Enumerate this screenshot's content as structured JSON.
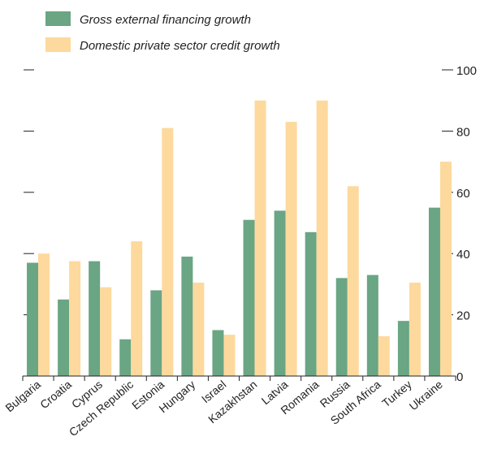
{
  "chart_data": {
    "type": "bar",
    "categories": [
      "Bulgaria",
      "Croatia",
      "Cyprus",
      "Czech Republic",
      "Estonia",
      "Hungary",
      "Israel",
      "Kazakhstan",
      "Latvia",
      "Romania",
      "Russia",
      "South Africa",
      "Turkey",
      "Ukraine"
    ],
    "series": [
      {
        "name": "Gross external financing growth",
        "color": "#6aa584",
        "values": [
          37,
          25,
          37.5,
          12,
          28,
          39,
          15,
          51,
          54,
          47,
          32,
          33,
          18,
          55
        ]
      },
      {
        "name": "Domestic private sector credit growth",
        "color": "#fdd99d",
        "values": [
          40,
          37.5,
          29,
          44,
          81,
          30.5,
          13.5,
          90,
          83,
          90,
          62,
          13,
          30.5,
          70
        ]
      }
    ],
    "ylim": [
      0,
      100
    ],
    "yticks": [
      0,
      20,
      40,
      60,
      80,
      100
    ],
    "grid": false,
    "legend_position": "top-left"
  }
}
